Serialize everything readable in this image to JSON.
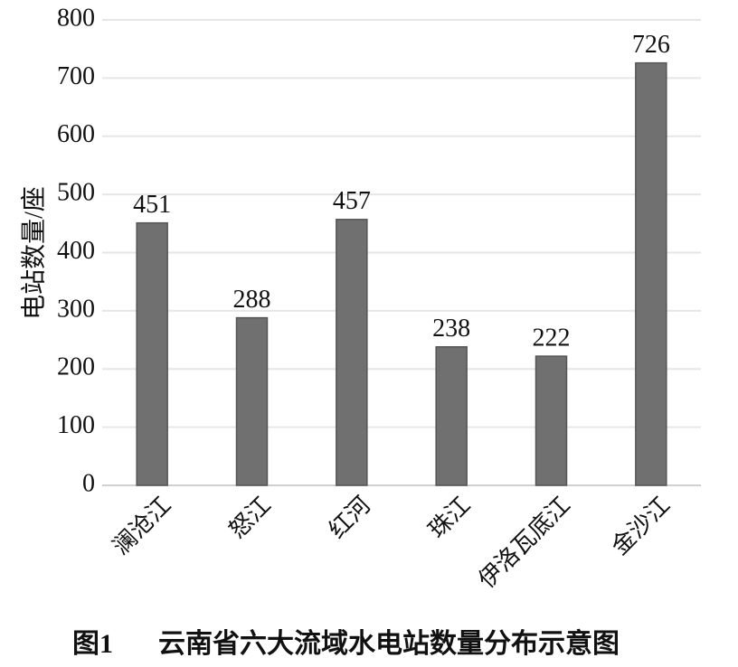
{
  "chart_data": {
    "type": "bar",
    "figure_label": "图1",
    "title": "云南省六大流域水电站数量分布示意图",
    "y_label": "电站数量/座",
    "categories": [
      "澜沧江",
      "怒江",
      "红河",
      "珠江",
      "伊洛瓦底江",
      "金沙江"
    ],
    "values": [
      451,
      288,
      457,
      238,
      222,
      726
    ],
    "color": "#707070",
    "ylim": [
      0,
      800
    ],
    "yticks": [
      0,
      100,
      200,
      300,
      400,
      500,
      600,
      700,
      800
    ],
    "grid": true,
    "value_labels_shown": true
  }
}
